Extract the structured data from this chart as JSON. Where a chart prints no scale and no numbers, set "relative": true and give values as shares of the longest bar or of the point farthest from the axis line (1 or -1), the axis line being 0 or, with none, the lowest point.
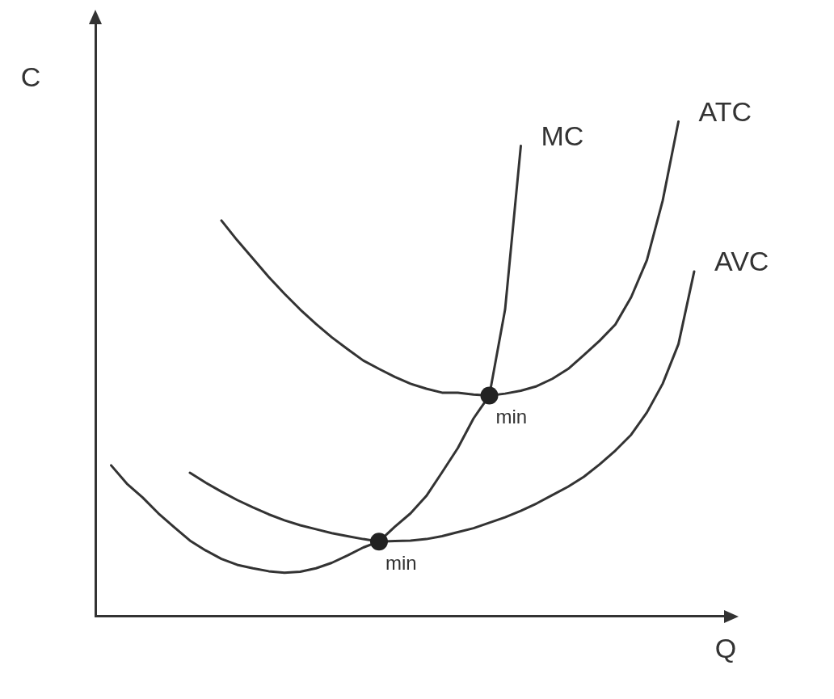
{
  "chart_data": {
    "type": "line",
    "relative": true,
    "xlabel": "Q",
    "ylabel": "C",
    "grid": false,
    "legend": false,
    "marker": "none",
    "line_style": "solid",
    "categories": [
      null,
      null,
      null,
      null,
      null,
      null,
      null,
      null,
      null,
      null,
      null,
      null,
      null,
      null,
      null,
      null,
      null,
      null,
      null,
      null,
      null,
      null,
      null,
      null,
      null,
      null,
      null,
      null,
      null,
      null,
      null,
      null,
      null,
      null,
      null,
      null,
      null,
      null,
      null,
      null,
      null
    ],
    "series": [
      {
        "name": "MC",
        "color": "#333333",
        "values": [
          null,
          0.305,
          0.268,
          0.24,
          0.208,
          0.18,
          0.153,
          0.133,
          0.116,
          0.104,
          0.097,
          0.091,
          0.088,
          0.09,
          0.097,
          0.108,
          0.123,
          0.139,
          0.151,
          0.181,
          0.208,
          0.243,
          0.291,
          0.34,
          0.4,
          0.446,
          0.62,
          0.951,
          null,
          null,
          null,
          null,
          null,
          null,
          null,
          null,
          null,
          null,
          null,
          null,
          null
        ]
      },
      {
        "name": "ATC",
        "color": "#333333",
        "values": [
          null,
          null,
          null,
          null,
          null,
          null,
          null,
          null,
          0.8,
          0.76,
          0.723,
          0.686,
          0.652,
          0.62,
          0.591,
          0.564,
          0.54,
          0.517,
          0.5,
          0.484,
          0.47,
          0.46,
          0.452,
          0.452,
          0.448,
          0.446,
          0.45,
          0.456,
          0.465,
          0.48,
          0.5,
          0.528,
          0.557,
          0.59,
          0.645,
          0.72,
          0.84,
          1,
          null,
          null,
          null
        ]
      },
      {
        "name": "AVC",
        "color": "#333333",
        "values": [
          null,
          null,
          null,
          null,
          null,
          null,
          0.29,
          0.27,
          0.252,
          0.235,
          0.22,
          0.206,
          0.194,
          0.184,
          0.176,
          0.168,
          0.162,
          0.156,
          0.151,
          0.152,
          0.153,
          0.156,
          0.162,
          0.17,
          0.178,
          0.189,
          0.2,
          0.213,
          0.228,
          0.245,
          0.262,
          0.282,
          0.307,
          0.335,
          0.367,
          0.412,
          0.47,
          0.55,
          0.697,
          null,
          null
        ]
      }
    ],
    "annotations": [
      {
        "text": "min",
        "y": 0.446
      },
      {
        "text": "min",
        "y": 0.151
      }
    ]
  }
}
